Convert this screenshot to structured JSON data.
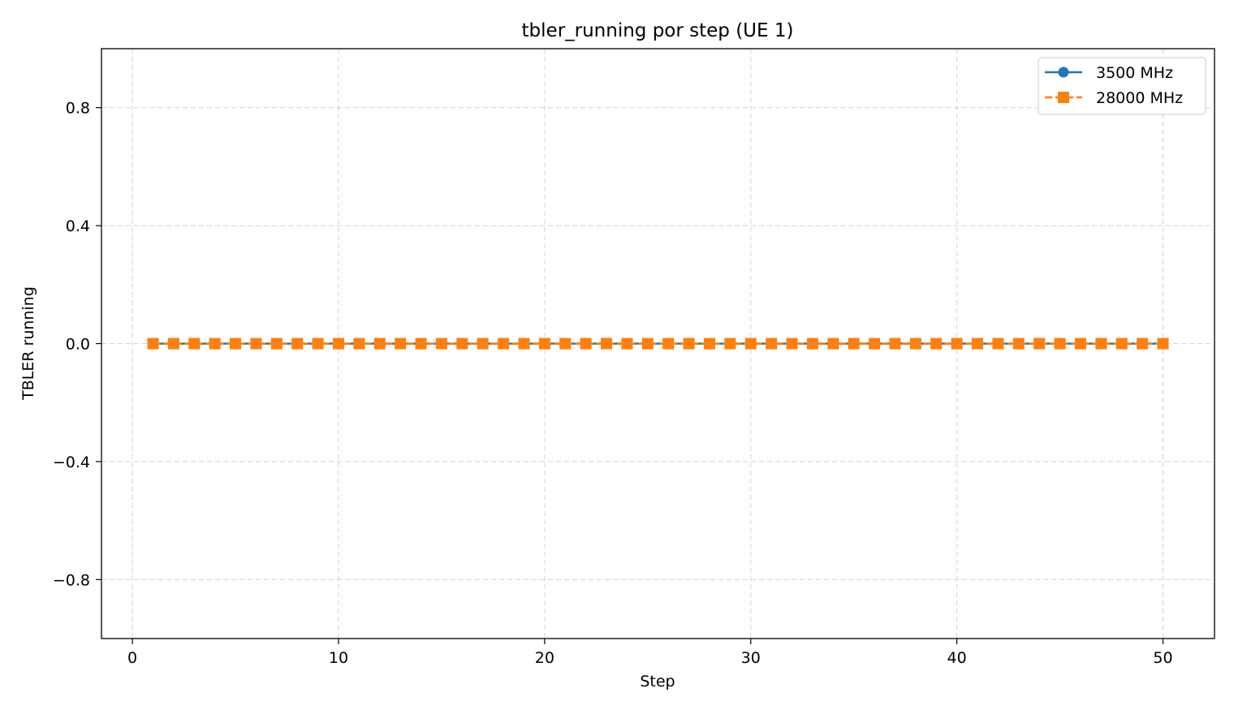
{
  "chart_data": {
    "type": "line",
    "title": "tbler_running por step (UE 1)",
    "xlabel": "Step",
    "ylabel": "TBLER running",
    "xlim": [
      -1.5,
      52.5
    ],
    "ylim": [
      -1.0,
      1.0
    ],
    "xticks": [
      0,
      10,
      20,
      30,
      40,
      50
    ],
    "xtick_labels": [
      "0",
      "10",
      "20",
      "30",
      "40",
      "50"
    ],
    "yticks": [
      -0.8,
      -0.4,
      0.0,
      0.4,
      0.8
    ],
    "ytick_labels": [
      "−0.8",
      "−0.4",
      "0.0",
      "0.4",
      "0.8"
    ],
    "grid": true,
    "legend_position": "top-right",
    "x": [
      1,
      2,
      3,
      4,
      5,
      6,
      7,
      8,
      9,
      10,
      11,
      12,
      13,
      14,
      15,
      16,
      17,
      18,
      19,
      20,
      21,
      22,
      23,
      24,
      25,
      26,
      27,
      28,
      29,
      30,
      31,
      32,
      33,
      34,
      35,
      36,
      37,
      38,
      39,
      40,
      41,
      42,
      43,
      44,
      45,
      46,
      47,
      48,
      49,
      50
    ],
    "series": [
      {
        "name": "3500 MHz",
        "color": "#1f77b4",
        "marker": "circle",
        "linestyle": "solid",
        "values": [
          0,
          0,
          0,
          0,
          0,
          0,
          0,
          0,
          0,
          0,
          0,
          0,
          0,
          0,
          0,
          0,
          0,
          0,
          0,
          0,
          0,
          0,
          0,
          0,
          0,
          0,
          0,
          0,
          0,
          0,
          0,
          0,
          0,
          0,
          0,
          0,
          0,
          0,
          0,
          0,
          0,
          0,
          0,
          0,
          0,
          0,
          0,
          0,
          0,
          0
        ]
      },
      {
        "name": "28000 MHz",
        "color": "#ff7f0e",
        "marker": "square",
        "linestyle": "dashed",
        "values": [
          0,
          0,
          0,
          0,
          0,
          0,
          0,
          0,
          0,
          0,
          0,
          0,
          0,
          0,
          0,
          0,
          0,
          0,
          0,
          0,
          0,
          0,
          0,
          0,
          0,
          0,
          0,
          0,
          0,
          0,
          0,
          0,
          0,
          0,
          0,
          0,
          0,
          0,
          0,
          0,
          0,
          0,
          0,
          0,
          0,
          0,
          0,
          0,
          0,
          0
        ]
      }
    ]
  }
}
